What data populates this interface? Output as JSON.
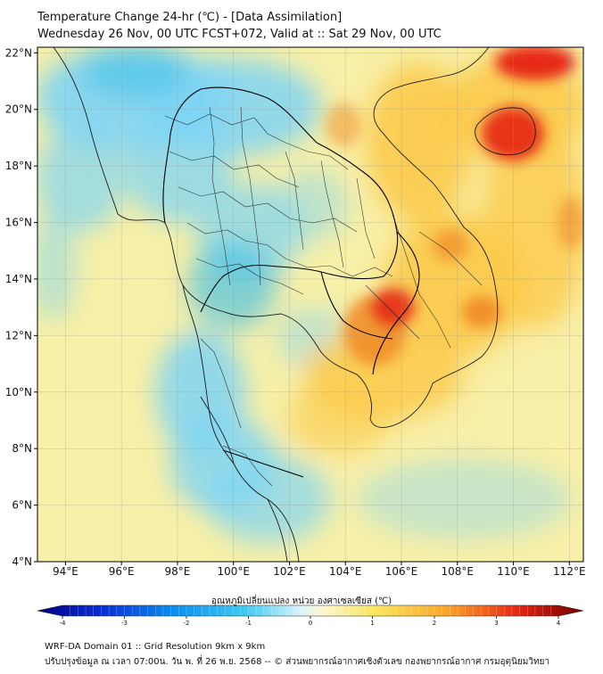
{
  "title": {
    "line1": "Temperature Change 24-hr (℃) - [Data Assimilation]",
    "line2": "Wednesday 26 Nov, 00 UTC FCST+072, Valid at :: Sat 29 Nov, 00 UTC"
  },
  "map": {
    "lat_ticks": [
      "22°N",
      "20°N",
      "18°N",
      "16°N",
      "14°N",
      "12°N",
      "10°N",
      "8°N",
      "6°N",
      "4°N"
    ],
    "lon_ticks": [
      "94°E",
      "96°E",
      "98°E",
      "100°E",
      "102°E",
      "104°E",
      "106°E",
      "108°E",
      "110°E",
      "112°E"
    ],
    "lat_range": [
      4,
      22.2
    ],
    "lon_range": [
      93,
      112.5
    ],
    "colors": {
      "base": "#f8f0a8",
      "cold": "#7fd4f4",
      "cold_strong": "#38bde9",
      "warm": "#fbc94a",
      "hot": "#f08a24",
      "hottest": "#e41a10"
    }
  },
  "colorbar": {
    "title": "อุณหภูมิเปลี่ยนแปลง หน่วย องศาเซลเซียส (℃)",
    "ticks": [
      "-4",
      "-3",
      "-2",
      "-1",
      "0",
      "1",
      "2",
      "3",
      "4"
    ],
    "range": [
      -4,
      4
    ]
  },
  "footer": {
    "line1": "WRF-DA Domain 01 :: Grid Resolution 9km x 9km",
    "line2": "ปรับปรุงข้อมูล ณ เวลา 07:00น. วัน พ. ที่ 26 พ.ย. 2568 -- © ส่วนพยากรณ์อากาศเชิงตัวเลข กองพยากรณ์อากาศ กรมอุตุนิยมวิทยา"
  }
}
